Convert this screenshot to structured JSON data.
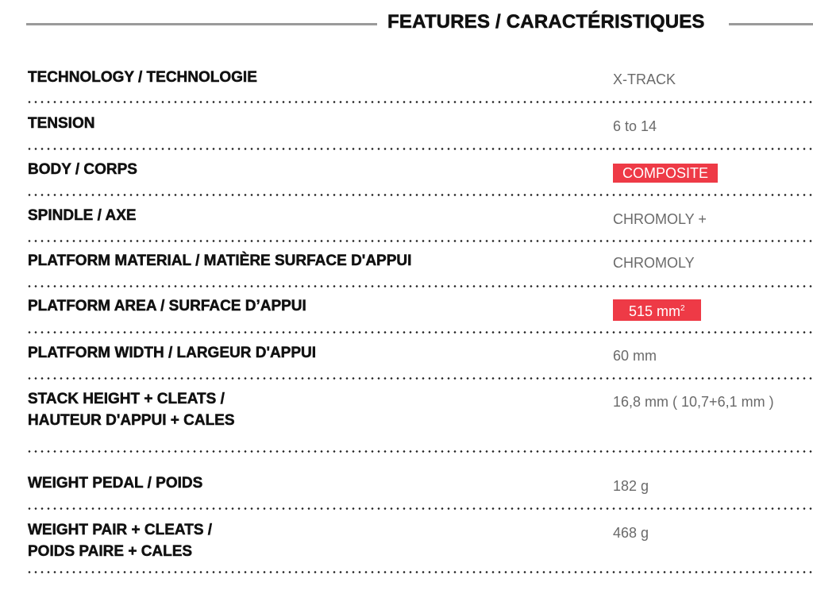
{
  "title": "FEATURES / CARACTÉRISTIQUES",
  "accent_color": "#ee3a46",
  "rows": [
    {
      "label": "TECHNOLOGY / TECHNOLOGIE",
      "value": "X-TRACK"
    },
    {
      "label": "TENSION",
      "value": "6 to 14"
    },
    {
      "label": "BODY / CORPS",
      "value": "COMPOSITE",
      "highlight": true
    },
    {
      "label": "SPINDLE / AXE",
      "value": "CHROMOLY +"
    },
    {
      "label": "PLATFORM MATERIAL / MATIÈRE SURFACE D'APPUI",
      "value": "CHROMOLY"
    },
    {
      "label": "PLATFORM AREA / SURFACE D’APPUI",
      "value": "515 mm",
      "value_sup": "2",
      "highlight": true
    },
    {
      "label": "PLATFORM WIDTH / LARGEUR D'APPUI",
      "value": "60 mm"
    },
    {
      "label": "STACK HEIGHT + CLEATS /",
      "label2": "HAUTEUR D'APPUI + CALES",
      "value": "16,8 mm ( 10,7+6,1 mm )"
    },
    {
      "label": "WEIGHT PEDAL / POIDS",
      "value": "182 g"
    },
    {
      "label": "WEIGHT PAIR + CLEATS /",
      "label2": "POIDS PAIRE + CALES",
      "value": "468 g"
    }
  ]
}
